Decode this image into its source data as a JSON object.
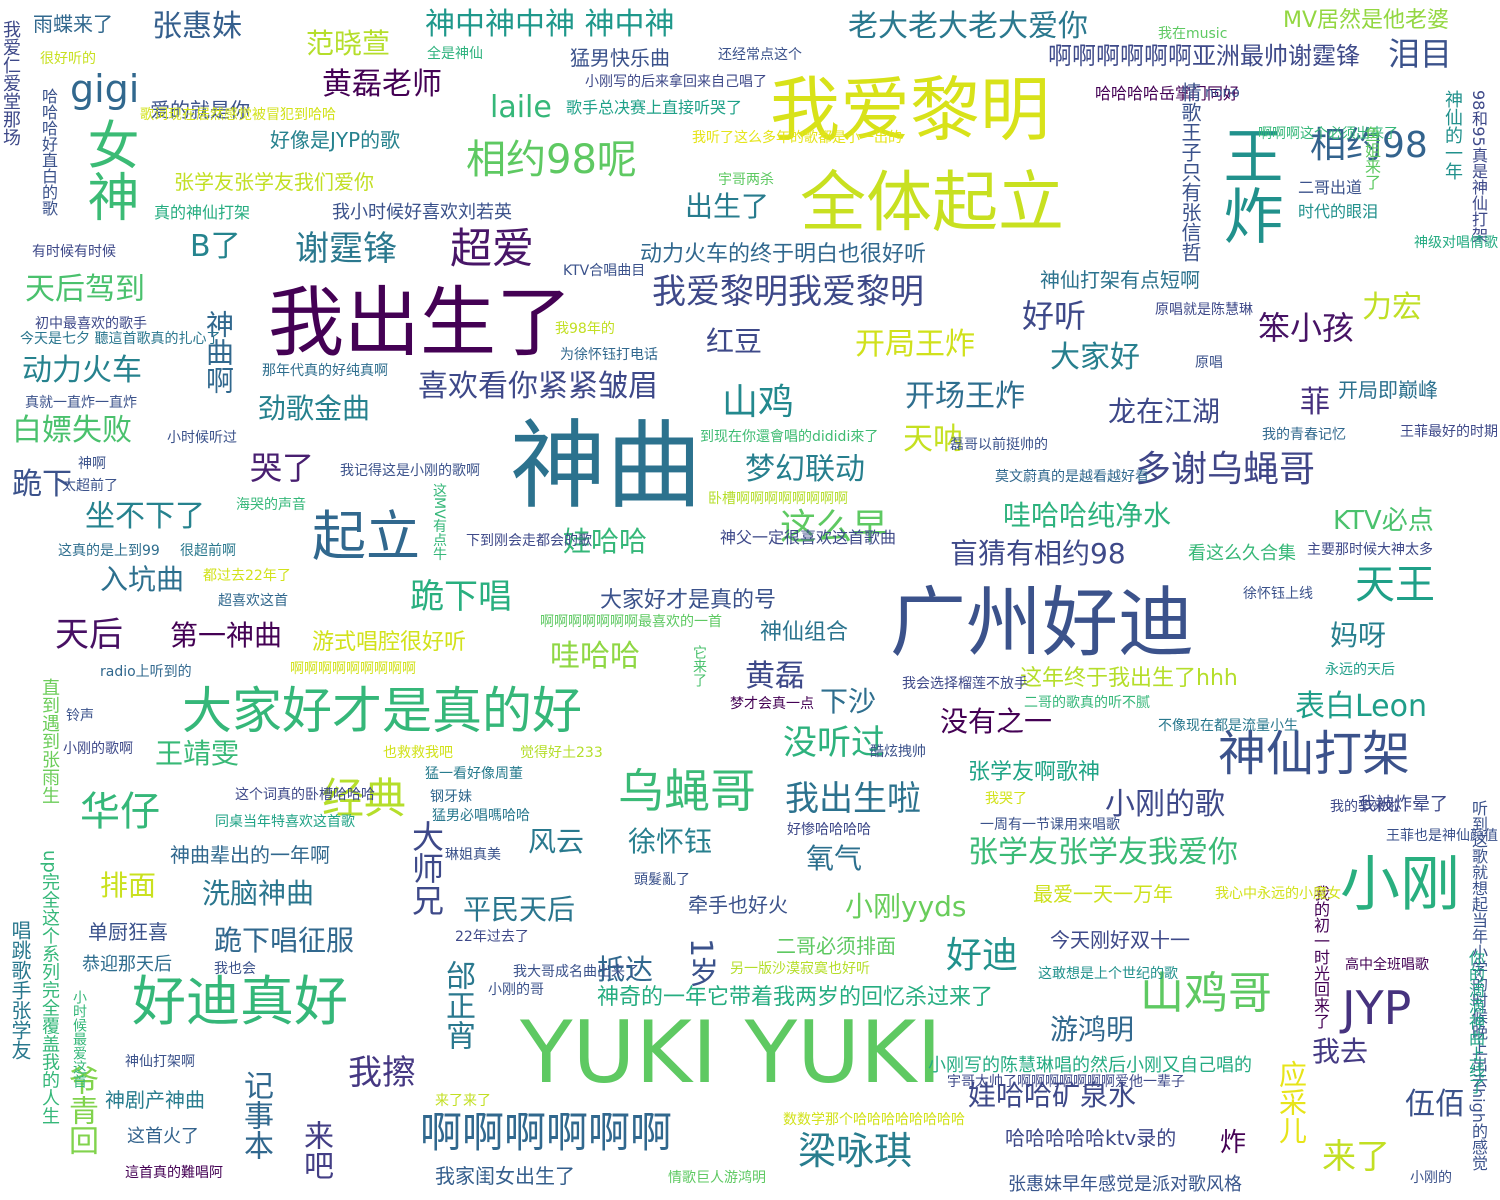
{
  "words": [
    {
      "text": "神曲",
      "color": "#2c728e"
    },
    {
      "text": "YUKI YUKI",
      "color": "#5ec962"
    },
    {
      "text": "广州好迪",
      "color": "#3b528b"
    },
    {
      "text": "我爱黎明",
      "color": "#d8e219"
    },
    {
      "text": "我出生了",
      "color": "#440154"
    },
    {
      "text": "全体起立",
      "color": "#c8e020"
    },
    {
      "text": "小刚",
      "color": "#29af7f"
    },
    {
      "text": "王炸",
      "color": "#21918c"
    },
    {
      "text": "大家好才是真的好",
      "color": "#35b779"
    },
    {
      "text": "好迪真好",
      "color": "#35b779"
    },
    {
      "text": "起立",
      "color": "#31688e"
    },
    {
      "text": "女神",
      "color": "#3bbb75"
    },
    {
      "text": "乌蝇哥",
      "color": "#3aba76"
    },
    {
      "text": "神仙打架",
      "color": "#3b528b"
    },
    {
      "text": "啊啊啊啊啊啊",
      "color": "#31688e"
    },
    {
      "text": "山鸡哥",
      "color": "#5ec962"
    },
    {
      "text": "JYP",
      "color": "#46327e"
    },
    {
      "text": "相约98呢",
      "color": "#5ec962"
    },
    {
      "text": "超爱",
      "color": "#481668"
    },
    {
      "text": "我爱黎明我爱黎明",
      "color": "#3e4989"
    },
    {
      "text": "多谢乌蝇哥",
      "color": "#404688"
    },
    {
      "text": "梁咏琪",
      "color": "#287d8e"
    },
    {
      "text": "经典",
      "color": "#b5de2b"
    },
    {
      "text": "谢霆锋",
      "color": "#2a788e"
    },
    {
      "text": "gigi",
      "color": "#31688e"
    },
    {
      "text": "相约98",
      "color": "#33638d"
    },
    {
      "text": "天王",
      "color": "#1fa088"
    },
    {
      "text": "华仔",
      "color": "#35b779"
    },
    {
      "text": "张惠妹",
      "color": "#355f8d"
    },
    {
      "text": "黄磊老师",
      "color": "#440154"
    },
    {
      "text": "范晓萱",
      "color": "#b5de2b"
    },
    {
      "text": "神中神中神 神中神",
      "color": "#1f988b"
    },
    {
      "text": "老大老大老大爱你",
      "color": "#2a788e"
    },
    {
      "text": "啊啊啊啊啊啊亚洲最帅谢霆锋",
      "color": "#3e4a89"
    },
    {
      "text": "泪目",
      "color": "#3b528b"
    },
    {
      "text": "laile",
      "color": "#35b779"
    },
    {
      "text": "MV居然是他老婆",
      "color": "#93d741"
    },
    {
      "text": "山鸡",
      "color": "#23898e"
    },
    {
      "text": "跪下唱",
      "color": "#29af7f"
    },
    {
      "text": "第一神曲",
      "color": "#440154"
    },
    {
      "text": "天后",
      "color": "#471063"
    },
    {
      "text": "入坑曲",
      "color": "#2d708e"
    },
    {
      "text": "跪下",
      "color": "#3b528b"
    },
    {
      "text": "坐不下了",
      "color": "#26828e"
    },
    {
      "text": "哭了",
      "color": "#481f70"
    },
    {
      "text": "白嫖失败",
      "color": "#4ac16d"
    },
    {
      "text": "动力火车",
      "color": "#26828e"
    },
    {
      "text": "天后驾到",
      "color": "#4ac16d"
    },
    {
      "text": "B了",
      "color": "#25848e"
    },
    {
      "text": "出生了",
      "color": "#287c8e"
    },
    {
      "text": "我出生啦",
      "color": "#2c728e"
    },
    {
      "text": "没听过",
      "color": "#2db27d"
    },
    {
      "text": "小刚的歌",
      "color": "#3e4989"
    },
    {
      "text": "张学友张学友我爱你",
      "color": "#3aba76"
    },
    {
      "text": "好迪",
      "color": "#21918c"
    },
    {
      "text": "大师兄",
      "color": "#3e4989"
    },
    {
      "text": "邰正宵",
      "color": "#2a788e"
    },
    {
      "text": "1岁",
      "color": "#3b528b"
    },
    {
      "text": "抵达",
      "color": "#31688e"
    },
    {
      "text": "我擦",
      "color": "#453882"
    },
    {
      "text": "娃哈哈矿泉水",
      "color": "#3e4989"
    },
    {
      "text": "游鸿明",
      "color": "#31688e"
    },
    {
      "text": "我去",
      "color": "#443a83"
    },
    {
      "text": "伍佰",
      "color": "#3b528b"
    },
    {
      "text": "来了",
      "color": "#c2df23"
    },
    {
      "text": "应采儿",
      "color": "#e7e419"
    },
    {
      "text": "炸",
      "color": "#440154"
    },
    {
      "text": "记事本",
      "color": "#31688e"
    },
    {
      "text": "来吧",
      "color": "#433e85"
    },
    {
      "text": "爷青回",
      "color": "#81d34d"
    },
    {
      "text": "神曲啊",
      "color": "#31688e"
    },
    {
      "text": "开局王炸",
      "color": "#d0e11c"
    },
    {
      "text": "开场王炸",
      "color": "#2e6e8e"
    },
    {
      "text": "梦幻联动",
      "color": "#277f8e"
    },
    {
      "text": "这么早",
      "color": "#5ec962"
    },
    {
      "text": "娃哈哈",
      "color": "#35b779"
    },
    {
      "text": "哇哈哈",
      "color": "#8fd744"
    },
    {
      "text": "盲猜有相约98",
      "color": "#3e4989"
    },
    {
      "text": "红豆",
      "color": "#3e4989"
    },
    {
      "text": "笨小孩",
      "color": "#471365"
    },
    {
      "text": "好听",
      "color": "#3e4989"
    },
    {
      "text": "大家好",
      "color": "#277f8e"
    },
    {
      "text": "龙在江湖",
      "color": "#3e4989"
    },
    {
      "text": "菲",
      "color": "#46307e"
    },
    {
      "text": "力宏",
      "color": "#c0df25"
    },
    {
      "text": "喜欢看你紧紧皱眉",
      "color": "#3e4989"
    },
    {
      "text": "劲歌金曲",
      "color": "#26818e"
    },
    {
      "text": "王靖雯",
      "color": "#38b977"
    },
    {
      "text": "天呐",
      "color": "#c5e021"
    },
    {
      "text": "哇哈哈纯净水",
      "color": "#2db27d"
    },
    {
      "text": "KTV必点",
      "color": "#4ac16d"
    },
    {
      "text": "黄磊",
      "color": "#3e4989"
    },
    {
      "text": "下沙",
      "color": "#2e6e8e"
    },
    {
      "text": "没有之一",
      "color": "#440154"
    },
    {
      "text": "表白Leon",
      "color": "#1f9e89"
    },
    {
      "text": "妈呀",
      "color": "#277f8e"
    },
    {
      "text": "风云",
      "color": "#29798e"
    },
    {
      "text": "徐怀钰",
      "color": "#277f8e"
    },
    {
      "text": "氧气",
      "color": "#2d708e"
    },
    {
      "text": "排面",
      "color": "#cae11f"
    },
    {
      "text": "洗脑神曲",
      "color": "#2a768e"
    },
    {
      "text": "平民天后",
      "color": "#2a768e"
    },
    {
      "text": "跪下唱征服",
      "color": "#31688e"
    },
    {
      "text": "小刚yyds",
      "color": "#69cd5b"
    },
    {
      "text": "今天刚好双十一",
      "color": "#3e4989"
    },
    {
      "text": "单厨狂喜",
      "color": "#3b528b"
    },
    {
      "text": "动力火车的终于明白也很好听",
      "color": "#31688e"
    },
    {
      "text": "神仙打架有点短啊",
      "color": "#2c738e"
    },
    {
      "text": "开局即巅峰",
      "color": "#2c718e"
    },
    {
      "text": "游式唱腔很好听",
      "color": "#d2e21b"
    },
    {
      "text": "大家好才是真的号",
      "color": "#3b528b"
    },
    {
      "text": "神仙组合",
      "color": "#2b748e"
    },
    {
      "text": "这年终于我出生了hhh",
      "color": "#b5de2b"
    },
    {
      "text": "看这么久合集",
      "color": "#37b878"
    },
    {
      "text": "神父一定很喜欢这首歌曲",
      "color": "#3e4989"
    },
    {
      "text": "张学友张学友我们爱你",
      "color": "#c2df23"
    },
    {
      "text": "我小时候好喜欢刘若英",
      "color": "#3b528b"
    },
    {
      "text": "好像是JYP的歌",
      "color": "#26828e"
    },
    {
      "text": "猛男快乐曲",
      "color": "#3b528b"
    },
    {
      "text": "爱的就是你",
      "color": "#3b528b"
    },
    {
      "text": "雨蝶来了",
      "color": "#31688e"
    },
    {
      "text": "神曲辈出的一年啊",
      "color": "#31688e"
    },
    {
      "text": "二哥必须排面",
      "color": "#5ec962"
    },
    {
      "text": "最爱一天一万年",
      "color": "#cde11d"
    },
    {
      "text": "神剧产神曲",
      "color": "#287c8e"
    },
    {
      "text": "这首火了",
      "color": "#33638d"
    },
    {
      "text": "恭迎那天后",
      "color": "#2e6d8e"
    },
    {
      "text": "牵手也好火",
      "color": "#3b528b"
    },
    {
      "text": "小刚写的陈慧琳唱的然后小刚又自己唱的",
      "color": "#25ab82"
    },
    {
      "text": "哈哈哈哈哈ktv录的",
      "color": "#3e4989"
    },
    {
      "text": "张惠妹早年感觉是派对歌风格",
      "color": "#39568c"
    },
    {
      "text": "我家闺女出生了",
      "color": "#355f8d"
    },
    {
      "text": "神奇的一年它带着我两岁的回忆杀过来了",
      "color": "#26ad81"
    },
    {
      "text": "张学友啊歌神",
      "color": "#20a486"
    },
    {
      "text": "我被炸晕了",
      "color": "#3e4989"
    },
    {
      "text": "二哥出道",
      "color": "#3b528b"
    },
    {
      "text": "时代的眼泪",
      "color": "#21918c"
    },
    {
      "text": "神仙的一年",
      "color": "#21918c"
    },
    {
      "text": "98和95真是神仙打架",
      "color": "#3e4989"
    },
    {
      "text": "听到这歌就想起当年小学的时候晚上出去high的感觉",
      "color": "#3b528b"
    },
    {
      "text": "我的初一时光回来了",
      "color": "#440154"
    },
    {
      "text": "你的滴滴神曲上线了",
      "color": "#20a386"
    },
    {
      "text": "我爱仁爱堂那场",
      "color": "#3e4989"
    },
    {
      "text": "今天是七夕 聽這首歌真的扎心了",
      "color": "#2a768e"
    },
    {
      "text": "哈哈哈好直白的歌",
      "color": "#3b528b"
    },
    {
      "text": "直到遇到张雨生",
      "color": "#6ccd5a"
    },
    {
      "text": "唱跳歌手张学友",
      "color": "#2a788e"
    },
    {
      "text": "up完全这个系列完全覆盖我的人生",
      "color": "#35b779"
    },
    {
      "text": "小时候最爱这首",
      "color": "#35b779"
    },
    {
      "text": "全是神仙",
      "color": "#2db27d"
    },
    {
      "text": "我在music",
      "color": "#5ec962"
    },
    {
      "text": "还经常点这个",
      "color": "#3b528b"
    },
    {
      "text": "小刚写的后来拿回来自己唱了",
      "color": "#3e4989"
    },
    {
      "text": "歌手总决赛上直接听哭了",
      "color": "#1fa188"
    },
    {
      "text": "哈哈哈哈岳掌门同好",
      "color": "#440154"
    },
    {
      "text": "nono",
      "color": "#3b528b"
    },
    {
      "text": "啊啊啊这个必须出来了",
      "color": "#35b779"
    },
    {
      "text": "情歌王子只有张信哲",
      "color": "#3b528b"
    },
    {
      "text": "鱼姐来了",
      "color": "#5ec962"
    },
    {
      "text": "很好听的",
      "color": "#c8e020"
    },
    {
      "text": "歌词现在居然感觉被冒犯到哈哈",
      "color": "#d2e21b"
    },
    {
      "text": "我听了这么多年的歌都是小一出的",
      "color": "#e5e419"
    },
    {
      "text": "宇哥两杀",
      "color": "#5ec962"
    },
    {
      "text": "真的神仙打架",
      "color": "#26ad81"
    },
    {
      "text": "有时候有时候",
      "color": "#3e4989"
    },
    {
      "text": "KTV合唱曲目",
      "color": "#3b528b"
    },
    {
      "text": "我98年的",
      "color": "#c2df23"
    },
    {
      "text": "为徐怀钰打电话",
      "color": "#31688e"
    },
    {
      "text": "那年代真的好纯真啊",
      "color": "#2e6e8e"
    },
    {
      "text": "真就一直炸一直炸",
      "color": "#3b528b"
    },
    {
      "text": "初中最喜欢的歌手",
      "color": "#3e4989"
    },
    {
      "text": "小时候听过",
      "color": "#3b528b"
    },
    {
      "text": "到现在你還會唱的dididi來了",
      "color": "#3fbc73"
    },
    {
      "text": "磊哥以前挺帅的",
      "color": "#3b528b"
    },
    {
      "text": "我的青春记忆",
      "color": "#31688e"
    },
    {
      "text": "王菲最好的时期",
      "color": "#3e4989"
    },
    {
      "text": "原唱",
      "color": "#3b528b"
    },
    {
      "text": "原唱就是陈慧琳",
      "color": "#3e4989"
    },
    {
      "text": "神级对唱情歌",
      "color": "#25ab82"
    },
    {
      "text": "神啊",
      "color": "#3b528b"
    },
    {
      "text": "我记得这是小刚的歌啊",
      "color": "#3b528b"
    },
    {
      "text": "太超前了",
      "color": "#3b528b"
    },
    {
      "text": "海哭的声音",
      "color": "#35b779"
    },
    {
      "text": "卧槽啊啊啊啊啊啊啊啊",
      "color": "#b5de2b"
    },
    {
      "text": "莫文蔚真的是越看越好看",
      "color": "#31688e"
    },
    {
      "text": "这MV有点牛",
      "color": "#35b779"
    },
    {
      "text": "这真的是上到99",
      "color": "#2e6e8e"
    },
    {
      "text": "很超前啊",
      "color": "#2a788e"
    },
    {
      "text": "都过去22年了",
      "color": "#d2e21b"
    },
    {
      "text": "超喜欢这首",
      "color": "#31688e"
    },
    {
      "text": "下到刚会走都会的歌",
      "color": "#3e4989"
    },
    {
      "text": "啊啊啊啊啊啊啊最喜欢的一首",
      "color": "#5ec962"
    },
    {
      "text": "主要那时候大神太多",
      "color": "#3e4989"
    },
    {
      "text": "徐怀钰上线",
      "color": "#3b528b"
    },
    {
      "text": "radio上听到的",
      "color": "#31688e"
    },
    {
      "text": "啊啊啊啊啊啊啊啊啊",
      "color": "#d2e21b"
    },
    {
      "text": "我会选择榴莲不放手",
      "color": "#3e4989"
    },
    {
      "text": "永远的天后",
      "color": "#1f9e89"
    },
    {
      "text": "二哥的歌真的听不腻",
      "color": "#35b779"
    },
    {
      "text": "不像现在都是流量小生",
      "color": "#2a788e"
    },
    {
      "text": "它来了",
      "color": "#4ac16d"
    },
    {
      "text": "梦才会真一点",
      "color": "#440154"
    },
    {
      "text": "酷炫拽帅",
      "color": "#3b528b"
    },
    {
      "text": "铃声",
      "color": "#3b528b"
    },
    {
      "text": "小刚的歌啊",
      "color": "#3e4989"
    },
    {
      "text": "也救救我吧",
      "color": "#d2e21b"
    },
    {
      "text": "觉得好土233",
      "color": "#b5de2b"
    },
    {
      "text": "猛一看好像周董",
      "color": "#287c8e"
    },
    {
      "text": "这个词真的卧槽哈哈哈",
      "color": "#3e4989"
    },
    {
      "text": "钢牙妹",
      "color": "#31688e"
    },
    {
      "text": "猛男必唱嗎哈哈",
      "color": "#2a788e"
    },
    {
      "text": "同桌当年特喜欢这首歌",
      "color": "#20a386"
    },
    {
      "text": "我哭了",
      "color": "#d2e21b"
    },
    {
      "text": "好惨哈哈哈哈",
      "color": "#3e4989"
    },
    {
      "text": "一周有一节课用来唱歌",
      "color": "#3b528b"
    },
    {
      "text": "我的华来啦",
      "color": "#3e4989"
    },
    {
      "text": "王菲也是神仙颜值",
      "color": "#3b528b"
    },
    {
      "text": "琳姐真美",
      "color": "#3b528b"
    },
    {
      "text": "頭髮亂了",
      "color": "#3b528b"
    },
    {
      "text": "我心中永远的小魔女",
      "color": "#d2e21b"
    },
    {
      "text": "22年过去了",
      "color": "#3e4989"
    },
    {
      "text": "另一版沙漠寂寞也好听",
      "color": "#b5de2b"
    },
    {
      "text": "这敢想是上个世纪的歌",
      "color": "#21918c"
    },
    {
      "text": "高中全班唱歌",
      "color": "#440154"
    },
    {
      "text": "我也会",
      "color": "#3b528b"
    },
    {
      "text": "我大哥成名曲出来了",
      "color": "#3b528b"
    },
    {
      "text": "小刚的哥",
      "color": "#3b528b"
    },
    {
      "text": "神仙打架啊",
      "color": "#3b528b"
    },
    {
      "text": "来了来了",
      "color": "#c2df23"
    },
    {
      "text": "宇哥太帅了啊啊啊啊啊啊啊爱他一辈子",
      "color": "#3e4989"
    },
    {
      "text": "数数学那个哈哈哈哈哈哈哈哈",
      "color": "#d2e21b"
    },
    {
      "text": "情歌巨人游鸿明",
      "color": "#5ec962"
    },
    {
      "text": "這首真的難唱阿",
      "color": "#440154"
    },
    {
      "text": "小刚的",
      "color": "#3b528b"
    },
    {
      "text": "是在想什么",
      "color": "#d2e21b"
    }
  ]
}
